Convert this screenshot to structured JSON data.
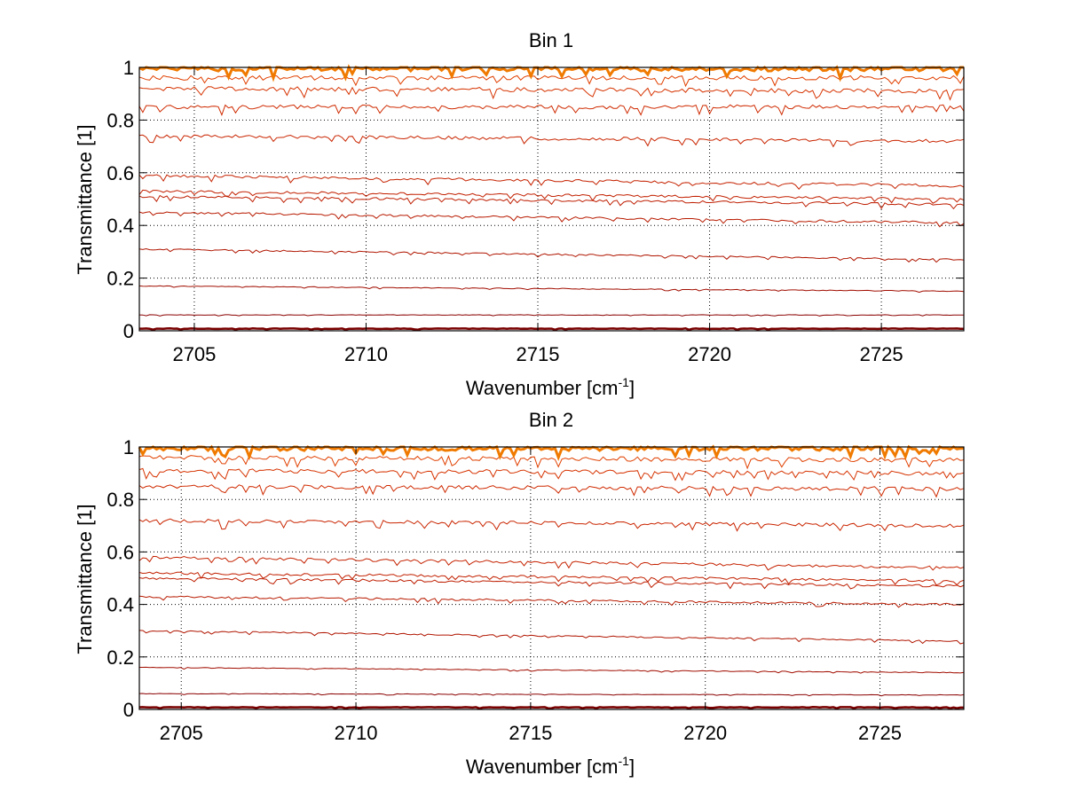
{
  "chart_data": [
    {
      "type": "line",
      "title": "Bin 1",
      "xlabel": "Wavenumber [cm",
      "xlabel_sup": "-1",
      "xlabel_close": "]",
      "ylabel": "Transmittance [1]",
      "xlim": [
        2703.4,
        2727.4
      ],
      "ylim": [
        0,
        1
      ],
      "xticks": [
        2705,
        2710,
        2715,
        2720,
        2725
      ],
      "yticks": [
        0,
        0.2,
        0.4,
        0.6,
        0.8,
        1
      ],
      "ytick_labels": [
        "0",
        "0.2",
        "0.4",
        "0.6",
        "0.8",
        "1"
      ],
      "grid": true,
      "legend": "none",
      "series": [
        {
          "color": "#7a0000",
          "values_at_x": {
            "x": [
              2703.4,
              2727.4
            ],
            "y": [
              0.008,
              0.008
            ]
          }
        },
        {
          "color": "#8b0000",
          "values_at_x": {
            "x": [
              2703.4,
              2727.4
            ],
            "y": [
              0.06,
              0.06
            ]
          }
        },
        {
          "color": "#a10d00",
          "values_at_x": {
            "x": [
              2703.4,
              2727.4
            ],
            "y": [
              0.17,
              0.15
            ]
          }
        },
        {
          "color": "#b01500",
          "values_at_x": {
            "x": [
              2703.4,
              2727.4
            ],
            "y": [
              0.31,
              0.27
            ]
          }
        },
        {
          "color": "#b81a00",
          "values_at_x": {
            "x": [
              2703.4,
              2727.4
            ],
            "y": [
              0.45,
              0.41
            ]
          }
        },
        {
          "color": "#be1d00",
          "values_at_x": {
            "x": [
              2703.4,
              2727.4
            ],
            "y": [
              0.51,
              0.48
            ]
          }
        },
        {
          "color": "#c22000",
          "values_at_x": {
            "x": [
              2703.4,
              2727.4
            ],
            "y": [
              0.53,
              0.5
            ]
          }
        },
        {
          "color": "#c52200",
          "values_at_x": {
            "x": [
              2703.4,
              2727.4
            ],
            "y": [
              0.59,
              0.55
            ]
          }
        },
        {
          "color": "#c92500",
          "values_at_x": {
            "x": [
              2703.4,
              2727.4
            ],
            "y": [
              0.74,
              0.72
            ]
          }
        },
        {
          "color": "#cf2a00",
          "values_at_x": {
            "x": [
              2703.4,
              2727.4
            ],
            "y": [
              0.85,
              0.85
            ]
          }
        },
        {
          "color": "#d63300",
          "values_at_x": {
            "x": [
              2703.4,
              2727.4
            ],
            "y": [
              0.92,
              0.91
            ]
          }
        },
        {
          "color": "#e04000",
          "values_at_x": {
            "x": [
              2703.4,
              2727.4
            ],
            "y": [
              0.96,
              0.96
            ]
          }
        },
        {
          "color": "#f07a00",
          "values_at_x": {
            "x": [
              2703.4,
              2727.4
            ],
            "y": [
              0.995,
              0.995
            ]
          }
        }
      ]
    },
    {
      "type": "line",
      "title": "Bin 2",
      "xlabel": "Wavenumber [cm",
      "xlabel_sup": "-1",
      "xlabel_close": "]",
      "ylabel": "Transmittance [1]",
      "xlim": [
        2703.8,
        2727.4
      ],
      "ylim": [
        0,
        1
      ],
      "xticks": [
        2705,
        2710,
        2715,
        2720,
        2725
      ],
      "yticks": [
        0,
        0.2,
        0.4,
        0.6,
        0.8,
        1
      ],
      "ytick_labels": [
        "0",
        "0.2",
        "0.4",
        "0.6",
        "0.8",
        "1"
      ],
      "grid": true,
      "legend": "none",
      "series": [
        {
          "color": "#7a0000",
          "values_at_x": {
            "x": [
              2703.8,
              2727.4
            ],
            "y": [
              0.008,
              0.008
            ]
          }
        },
        {
          "color": "#8b0000",
          "values_at_x": {
            "x": [
              2703.8,
              2727.4
            ],
            "y": [
              0.06,
              0.055
            ]
          }
        },
        {
          "color": "#a10d00",
          "values_at_x": {
            "x": [
              2703.8,
              2727.4
            ],
            "y": [
              0.16,
              0.14
            ]
          }
        },
        {
          "color": "#b01500",
          "values_at_x": {
            "x": [
              2703.8,
              2727.4
            ],
            "y": [
              0.3,
              0.26
            ]
          }
        },
        {
          "color": "#b81a00",
          "values_at_x": {
            "x": [
              2703.8,
              2727.4
            ],
            "y": [
              0.43,
              0.4
            ]
          }
        },
        {
          "color": "#be1d00",
          "values_at_x": {
            "x": [
              2703.8,
              2727.4
            ],
            "y": [
              0.5,
              0.47
            ]
          }
        },
        {
          "color": "#c22000",
          "values_at_x": {
            "x": [
              2703.8,
              2727.4
            ],
            "y": [
              0.52,
              0.49
            ]
          }
        },
        {
          "color": "#c52200",
          "values_at_x": {
            "x": [
              2703.8,
              2727.4
            ],
            "y": [
              0.58,
              0.54
            ]
          }
        },
        {
          "color": "#c92500",
          "values_at_x": {
            "x": [
              2703.8,
              2727.4
            ],
            "y": [
              0.72,
              0.7
            ]
          }
        },
        {
          "color": "#cf2a00",
          "values_at_x": {
            "x": [
              2703.8,
              2727.4
            ],
            "y": [
              0.85,
              0.84
            ]
          }
        },
        {
          "color": "#d63300",
          "values_at_x": {
            "x": [
              2703.8,
              2727.4
            ],
            "y": [
              0.91,
              0.9
            ]
          }
        },
        {
          "color": "#e04000",
          "values_at_x": {
            "x": [
              2703.8,
              2727.4
            ],
            "y": [
              0.96,
              0.95
            ]
          }
        },
        {
          "color": "#f07a00",
          "values_at_x": {
            "x": [
              2703.8,
              2727.4
            ],
            "y": [
              0.995,
              0.995
            ]
          }
        }
      ]
    }
  ]
}
